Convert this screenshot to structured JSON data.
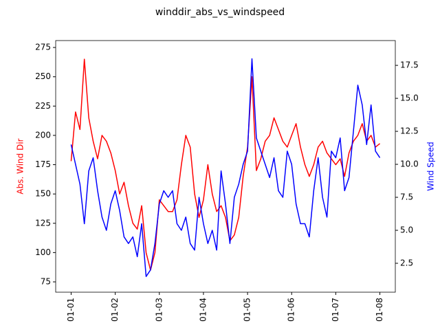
{
  "chart_data": {
    "type": "line",
    "title": "winddir_abs_vs_windspeed",
    "y_label": "Abs. Wind Dir",
    "y2_label": "Wind Speed",
    "x": [
      0,
      0.1,
      0.2,
      0.3,
      0.4,
      0.5,
      0.6,
      0.7,
      0.8,
      0.9,
      1,
      1.1,
      1.2,
      1.3,
      1.4,
      1.5,
      1.6,
      1.7,
      1.8,
      1.9,
      2,
      2.1,
      2.2,
      2.3,
      2.4,
      2.5,
      2.6,
      2.7,
      2.8,
      2.9,
      3,
      3.1,
      3.2,
      3.3,
      3.4,
      3.5,
      3.6,
      3.7,
      3.8,
      3.9,
      4,
      4.1,
      4.2,
      4.3,
      4.4,
      4.5,
      4.6,
      4.7,
      4.8,
      4.9,
      5,
      5.1,
      5.2,
      5.3,
      5.4,
      5.5,
      5.6,
      5.7,
      5.8,
      5.9,
      6,
      6.1,
      6.2,
      6.3,
      6.4,
      6.5,
      6.6,
      6.7,
      6.8,
      6.9,
      7
    ],
    "series": [
      {
        "color": "#ff0000",
        "axis": "y",
        "values": [
          178,
          220,
          205,
          265,
          215,
          195,
          180,
          200,
          195,
          185,
          170,
          150,
          160,
          140,
          125,
          120,
          140,
          100,
          85,
          100,
          145,
          140,
          135,
          135,
          145,
          175,
          200,
          190,
          150,
          130,
          145,
          175,
          150,
          135,
          140,
          130,
          110,
          115,
          130,
          165,
          190,
          250,
          170,
          180,
          195,
          200,
          215,
          205,
          195,
          190,
          200,
          210,
          190,
          175,
          165,
          175,
          190,
          195,
          185,
          180,
          175,
          180,
          165,
          185,
          195,
          200,
          210,
          195,
          200,
          190,
          193
        ]
      },
      {
        "color": "#0000ff",
        "axis": "y2",
        "values": [
          11.5,
          10,
          8.5,
          5.5,
          9.5,
          10.5,
          8,
          6,
          5,
          7,
          8,
          6.5,
          4.5,
          4,
          4.5,
          3,
          5.5,
          1.5,
          2,
          4,
          7,
          8,
          7.5,
          8,
          5.5,
          5,
          6,
          4,
          3.5,
          7.5,
          5.5,
          4,
          5,
          3.5,
          9.5,
          7,
          4,
          7.5,
          8.5,
          10,
          11,
          18,
          12,
          11,
          10,
          9,
          10.5,
          8,
          7.5,
          11,
          10,
          7,
          5.5,
          5.5,
          4.5,
          8,
          10.5,
          7.5,
          6,
          11,
          10.5,
          12,
          8,
          9,
          12.5,
          16,
          14.5,
          11.5,
          14.5,
          11,
          10.5
        ]
      }
    ],
    "xlim": [
      -0.35,
      7.35
    ],
    "xticks": [
      {
        "value": 0,
        "label": "01-01"
      },
      {
        "value": 1,
        "label": "01-02"
      },
      {
        "value": 2,
        "label": "01-03"
      },
      {
        "value": 3,
        "label": "01-04"
      },
      {
        "value": 4,
        "label": "01-05"
      },
      {
        "value": 5,
        "label": "01-06"
      },
      {
        "value": 6,
        "label": "01-07"
      },
      {
        "value": 7,
        "label": "01-08"
      }
    ],
    "ylim": [
      66.2,
      280.9
    ],
    "yticks": [
      75,
      100,
      125,
      150,
      175,
      200,
      225,
      250,
      275
    ],
    "y2lim": [
      0.31,
      19.38
    ],
    "y2ticks": [
      2.5,
      {
        "value": 5,
        "label": "5.0"
      },
      7.5,
      {
        "value": 10,
        "label": "10.0"
      },
      12.5,
      {
        "value": 15,
        "label": "15.0"
      },
      17.5
    ]
  }
}
